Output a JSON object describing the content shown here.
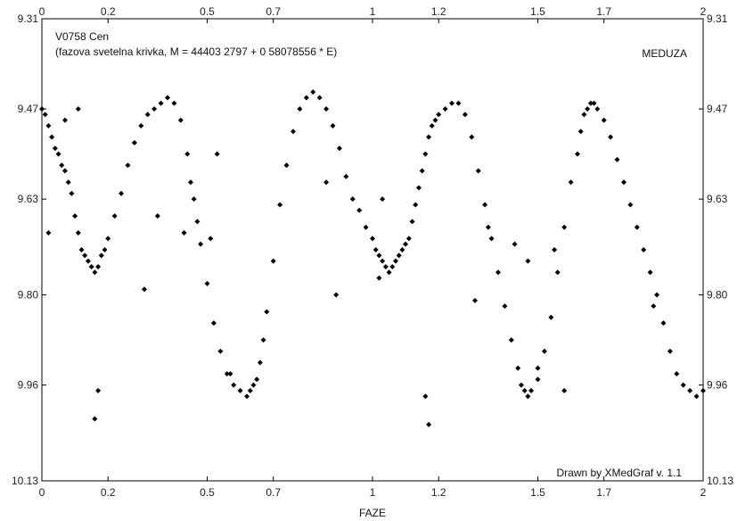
{
  "chart_data": {
    "type": "scatter",
    "title": "V0758 Cen",
    "subtitle": "(fazova svetelna krivka, M = 44403 2797 + 0 58078556 * E)",
    "top_right_label": "MEDUZA",
    "footer_note": "Drawn by XMedGraf v. 1.1",
    "xlabel": "FAZE",
    "xlim": [
      0,
      2
    ],
    "ylim": [
      9.31,
      10.13
    ],
    "y_inverted": true,
    "grid": false,
    "x_ticks_bottom": [
      "0",
      "0.2",
      "0.5",
      "0.7",
      "1",
      "1.2",
      "1.5",
      "1.7",
      "2"
    ],
    "x_ticks_top": [
      "0",
      "0.2",
      "0.5",
      "0.7",
      "1",
      "1.2",
      "1.5",
      "1.7",
      "2"
    ],
    "y_ticks_left": [
      "9.31",
      "9.47",
      "9.63",
      "9.80",
      "9.96",
      "10.13"
    ],
    "y_ticks_right": [
      "9.31",
      "9.47",
      "9.63",
      "9.80",
      "9.96",
      "10.13"
    ],
    "series": [
      {
        "marker": "diamond",
        "color": "#000000",
        "x": [
          0.0,
          0.01,
          0.02,
          0.03,
          0.04,
          0.05,
          0.06,
          0.07,
          0.08,
          0.09,
          0.1,
          0.11,
          0.12,
          0.13,
          0.14,
          0.15,
          0.16,
          0.17,
          0.18,
          0.19,
          0.2,
          0.22,
          0.24,
          0.26,
          0.28,
          0.3,
          0.32,
          0.34,
          0.36,
          0.38,
          0.4,
          0.42,
          0.44,
          0.45,
          0.46,
          0.47,
          0.48,
          0.5,
          0.52,
          0.54,
          0.56,
          0.58,
          0.6,
          0.62,
          0.63,
          0.64,
          0.65,
          0.66,
          0.67,
          0.68,
          0.7,
          0.72,
          0.74,
          0.76,
          0.78,
          0.8,
          0.82,
          0.84,
          0.86,
          0.88,
          0.9,
          0.92,
          0.94,
          0.96,
          0.98,
          1.0,
          1.01,
          1.02,
          1.03,
          1.04,
          1.05,
          1.06,
          1.07,
          1.08,
          1.09,
          1.1,
          1.11,
          1.12,
          1.13,
          1.14,
          1.15,
          1.16,
          1.17,
          1.18,
          1.19,
          1.2,
          1.22,
          1.24,
          1.26,
          1.28,
          1.3,
          1.32,
          1.34,
          1.36,
          1.38,
          1.4,
          1.42,
          1.44,
          1.45,
          1.46,
          1.47,
          1.48,
          1.5,
          1.52,
          1.54,
          1.56,
          1.58,
          1.6,
          1.62,
          1.63,
          1.64,
          1.65,
          1.66,
          1.67,
          1.68,
          1.7,
          1.72,
          1.74,
          1.76,
          1.78,
          1.8,
          1.82,
          1.84,
          1.86,
          1.88,
          1.9,
          1.92,
          1.94,
          1.96,
          1.98,
          2.0,
          0.16,
          0.17,
          0.31,
          0.35,
          0.43,
          0.51,
          0.57,
          1.17,
          1.16,
          1.31,
          1.35,
          1.43,
          1.5,
          1.58,
          0.02,
          0.89,
          1.02,
          1.85,
          1.03,
          0.07,
          0.53,
          0.86,
          1.47,
          1.55,
          0.11
        ],
        "y": [
          9.47,
          9.48,
          9.5,
          9.52,
          9.54,
          9.55,
          9.57,
          9.58,
          9.6,
          9.62,
          9.66,
          9.69,
          9.72,
          9.73,
          9.74,
          9.75,
          9.76,
          9.75,
          9.73,
          9.72,
          9.7,
          9.66,
          9.62,
          9.57,
          9.53,
          9.5,
          9.48,
          9.47,
          9.46,
          9.45,
          9.46,
          9.49,
          9.55,
          9.6,
          9.63,
          9.67,
          9.71,
          9.78,
          9.85,
          9.9,
          9.94,
          9.96,
          9.97,
          9.98,
          9.97,
          9.96,
          9.95,
          9.92,
          9.88,
          9.83,
          9.74,
          9.64,
          9.57,
          9.51,
          9.47,
          9.45,
          9.44,
          9.45,
          9.47,
          9.5,
          9.54,
          9.59,
          9.63,
          9.65,
          9.68,
          9.7,
          9.72,
          9.73,
          9.74,
          9.75,
          9.76,
          9.75,
          9.74,
          9.73,
          9.72,
          9.71,
          9.7,
          9.67,
          9.64,
          9.61,
          9.58,
          9.55,
          9.52,
          9.5,
          9.49,
          9.48,
          9.47,
          9.46,
          9.46,
          9.48,
          9.52,
          9.58,
          9.64,
          9.7,
          9.76,
          9.82,
          9.88,
          9.93,
          9.96,
          9.97,
          9.98,
          9.97,
          9.95,
          9.9,
          9.84,
          9.76,
          9.68,
          9.6,
          9.55,
          9.51,
          9.48,
          9.47,
          9.46,
          9.46,
          9.47,
          9.49,
          9.52,
          9.56,
          9.6,
          9.64,
          9.68,
          9.72,
          9.76,
          9.8,
          9.85,
          9.9,
          9.94,
          9.96,
          9.97,
          9.98,
          9.97,
          10.02,
          9.97,
          9.79,
          9.66,
          9.69,
          9.7,
          9.94,
          10.03,
          9.98,
          9.81,
          9.68,
          9.71,
          9.93,
          9.97,
          9.69,
          9.8,
          9.77,
          9.82,
          9.63,
          9.49,
          9.55,
          9.6,
          9.74,
          9.72,
          9.47
        ]
      }
    ]
  }
}
